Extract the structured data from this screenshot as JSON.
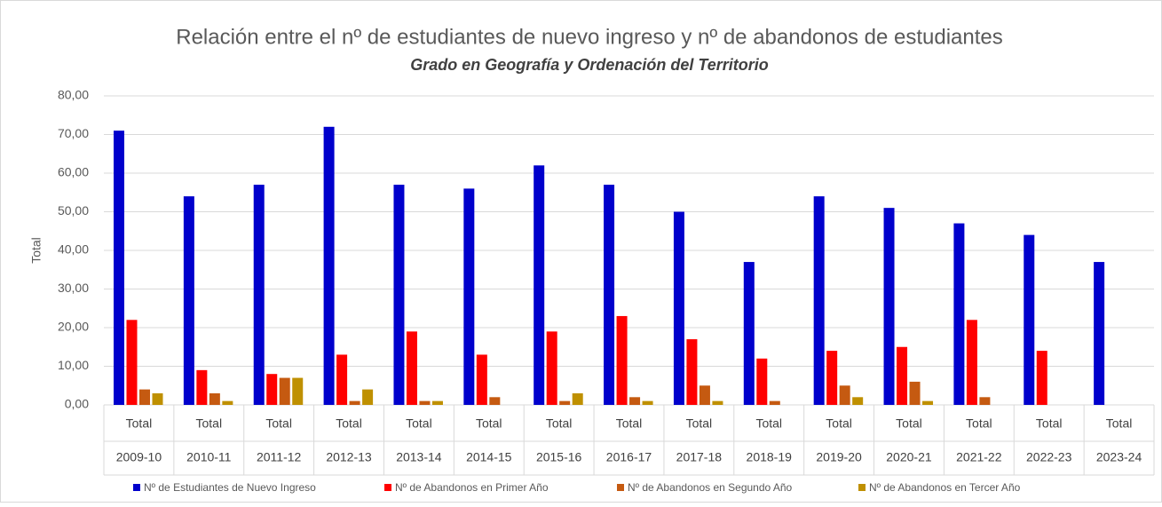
{
  "chart_data": {
    "type": "bar",
    "title": "Relación entre el nº de estudiantes de nuevo ingreso y nº de abandonos de estudiantes",
    "subtitle": "Grado en Geografía y Ordenación del Territorio",
    "y_label": "Total",
    "categories": [
      "2009-10",
      "2010-11",
      "2011-12",
      "2012-13",
      "2013-14",
      "2014-15",
      "2015-16",
      "2016-17",
      "2017-18",
      "2018-19",
      "2019-20",
      "2020-21",
      "2021-22",
      "2022-23",
      "2023-24"
    ],
    "sub_categories": [
      "Total",
      "Total",
      "Total",
      "Total",
      "Total",
      "Total",
      "Total",
      "Total",
      "Total",
      "Total",
      "Total",
      "Total",
      "Total",
      "Total",
      "Total"
    ],
    "series": [
      {
        "name": "Nº de Estudiantes de Nuevo Ingreso",
        "color": "#0000CC",
        "values": [
          71,
          54,
          57,
          72,
          57,
          56,
          62,
          57,
          50,
          37,
          54,
          51,
          47,
          44,
          37
        ]
      },
      {
        "name": "Nº de Abandonos en Primer Año",
        "color": "#FF0000",
        "values": [
          22,
          9,
          8,
          13,
          19,
          13,
          19,
          23,
          17,
          12,
          14,
          15,
          22,
          14,
          null
        ]
      },
      {
        "name": "Nº de Abandonos en Segundo Año",
        "color": "#C55A11",
        "values": [
          4,
          3,
          7,
          1,
          1,
          2,
          1,
          2,
          5,
          1,
          5,
          6,
          2,
          null,
          null
        ]
      },
      {
        "name": "Nº de Abandonos en Tercer Año",
        "color": "#BF9000",
        "values": [
          3,
          1,
          7,
          4,
          1,
          null,
          3,
          1,
          1,
          null,
          2,
          1,
          null,
          null,
          null
        ]
      }
    ],
    "ylim": [
      0,
      80
    ],
    "yticks": [
      {
        "value": 0,
        "label": "0,00"
      },
      {
        "value": 10,
        "label": "10,00"
      },
      {
        "value": 20,
        "label": "20,00"
      },
      {
        "value": 30,
        "label": "30,00"
      },
      {
        "value": 40,
        "label": "40,00"
      },
      {
        "value": 50,
        "label": "50,00"
      },
      {
        "value": 60,
        "label": "60,00"
      },
      {
        "value": 70,
        "label": "70,00"
      },
      {
        "value": 80,
        "label": "80,00"
      }
    ],
    "grid": true,
    "legend": "bottom"
  }
}
